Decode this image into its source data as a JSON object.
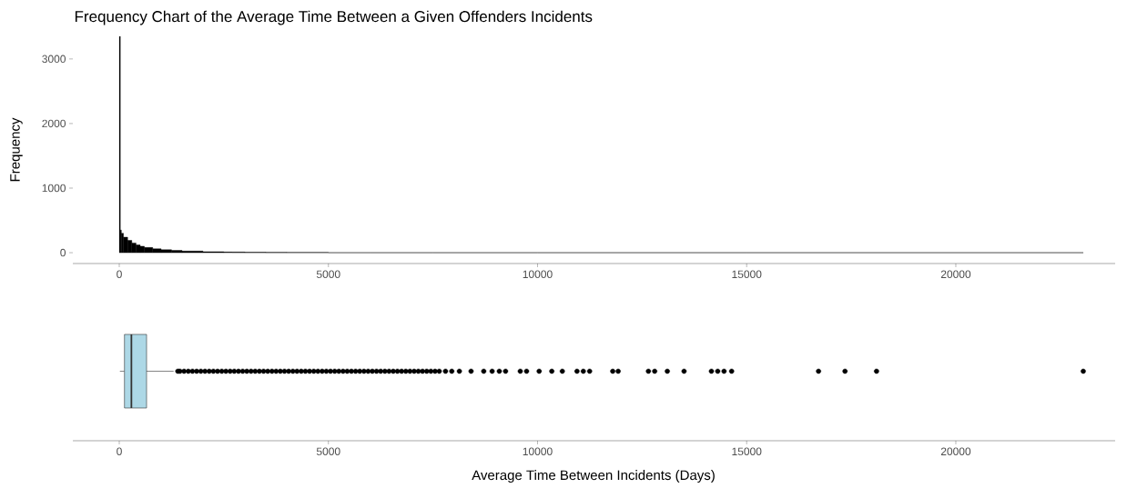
{
  "chart_data": [
    {
      "type": "histogram",
      "title": "Frequency Chart of the Average Time Between a Given Offenders Incidents",
      "ylabel": "Frequency",
      "bins": [
        0,
        25,
        50,
        100,
        200,
        300,
        400,
        500,
        600,
        800,
        1000,
        1250,
        1500,
        2000,
        2500,
        3000,
        3500,
        4000,
        5000,
        6000,
        7500,
        10000,
        15000,
        23050
      ],
      "values": [
        3350,
        350,
        300,
        240,
        190,
        150,
        120,
        100,
        80,
        60,
        45,
        35,
        25,
        15,
        10,
        7,
        5,
        3,
        0,
        0,
        0,
        0,
        0
      ],
      "color": "#000000",
      "xlim": [
        -1110,
        23810
      ],
      "xticks": [
        0,
        5000,
        10000,
        15000,
        20000
      ],
      "ylim": [
        -168,
        3350
      ],
      "yticks": [
        0,
        1000,
        2000,
        3000
      ]
    },
    {
      "type": "box",
      "orientation": "horizontal",
      "xlabel": "Average Time Between Incidents (Days)",
      "categories": [
        null
      ],
      "boxes": [
        {
          "low": 15,
          "q1": 124,
          "median": 290,
          "q3": 653,
          "high": 1300,
          "outliers": [
            1400,
            1450,
            1550,
            1650,
            1750,
            1850,
            1950,
            2050,
            2150,
            2250,
            2350,
            2450,
            2550,
            2650,
            2750,
            2850,
            2950,
            3050,
            3150,
            3250,
            3350,
            3450,
            3550,
            3650,
            3750,
            3850,
            3950,
            4050,
            4150,
            4250,
            4350,
            4450,
            4550,
            4650,
            4750,
            4850,
            4950,
            5050,
            5150,
            5250,
            5350,
            5450,
            5550,
            5650,
            5750,
            5850,
            5950,
            6050,
            6150,
            6250,
            6350,
            6450,
            6550,
            6650,
            6750,
            6850,
            6950,
            7050,
            7150,
            7250,
            7350,
            7450,
            7550,
            7650,
            7800,
            7950,
            8131,
            8411,
            8714,
            8914,
            9086,
            9236,
            9587,
            9738,
            10039,
            10341,
            10592,
            10943,
            11094,
            11245,
            11798,
            11928,
            12651,
            12801,
            13103,
            13503,
            14157,
            14308,
            14459,
            14640,
            16718,
            17351,
            18104,
            23047
          ]
        }
      ],
      "color": "#add8e6",
      "xlim": [
        -1110,
        23810
      ],
      "xticks": [
        0,
        5000,
        10000,
        15000,
        20000
      ],
      "tick_labels": "x"
    }
  ]
}
